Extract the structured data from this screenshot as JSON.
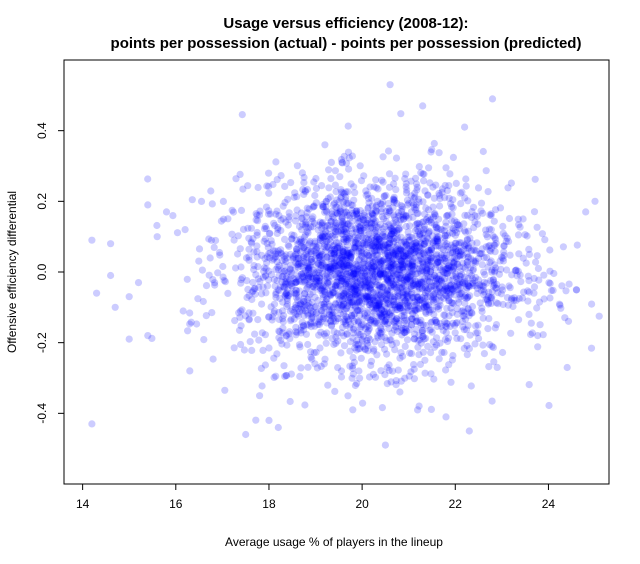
{
  "chart_data": {
    "type": "scatter",
    "title_line1": "Usage versus efficiency (2008-12):",
    "title_line2": "points per possession (actual) - points per possession (predicted)",
    "xlabel": "Average usage % of players in the lineup",
    "ylabel": "Offensive efficiency differential",
    "xlim": [
      13.6,
      25.3
    ],
    "ylim": [
      -0.6,
      0.6
    ],
    "x_ticks": [
      14,
      16,
      18,
      20,
      22,
      24
    ],
    "x_tick_labels": [
      "14",
      "16",
      "18",
      "20",
      "22",
      "24"
    ],
    "y_ticks": [
      -0.4,
      -0.2,
      0.0,
      0.2,
      0.4
    ],
    "y_tick_labels": [
      "-0.4",
      "-0.2",
      "0.0",
      "0.2",
      "0.4"
    ],
    "grid": false,
    "legend": "none",
    "point_color": "#0000ff",
    "point_opacity": 0.2,
    "series": [
      {
        "distribution": {
          "x_mean": 20.3,
          "x_sd": 1.45,
          "y_mean": 0.0,
          "y_sd": 0.125,
          "n": 3000
        },
        "notable_points": [
          {
            "x": 14.2,
            "y": 0.09
          },
          {
            "x": 14.2,
            "y": -0.43
          },
          {
            "x": 14.3,
            "y": -0.06
          },
          {
            "x": 14.6,
            "y": 0.08
          },
          {
            "x": 14.6,
            "y": -0.01
          },
          {
            "x": 14.7,
            "y": -0.1
          },
          {
            "x": 15.0,
            "y": -0.07
          },
          {
            "x": 15.0,
            "y": -0.19
          },
          {
            "x": 15.2,
            "y": -0.03
          },
          {
            "x": 15.4,
            "y": 0.19
          },
          {
            "x": 15.4,
            "y": -0.18
          },
          {
            "x": 15.6,
            "y": 0.1
          },
          {
            "x": 15.8,
            "y": 0.17
          },
          {
            "x": 16.2,
            "y": 0.12
          },
          {
            "x": 16.3,
            "y": -0.28
          },
          {
            "x": 17.5,
            "y": -0.46
          },
          {
            "x": 17.8,
            "y": -0.35
          },
          {
            "x": 18.0,
            "y": -0.42
          },
          {
            "x": 18.2,
            "y": -0.44
          },
          {
            "x": 19.2,
            "y": 0.36
          },
          {
            "x": 19.8,
            "y": -0.39
          },
          {
            "x": 20.5,
            "y": -0.49
          },
          {
            "x": 20.6,
            "y": 0.53
          },
          {
            "x": 21.3,
            "y": 0.47
          },
          {
            "x": 21.8,
            "y": -0.41
          },
          {
            "x": 22.2,
            "y": 0.41
          },
          {
            "x": 22.3,
            "y": -0.45
          },
          {
            "x": 22.8,
            "y": 0.49
          },
          {
            "x": 22.9,
            "y": -0.27
          },
          {
            "x": 24.6,
            "y": -0.05
          },
          {
            "x": 24.8,
            "y": 0.17
          },
          {
            "x": 25.0,
            "y": 0.2
          }
        ]
      }
    ]
  }
}
